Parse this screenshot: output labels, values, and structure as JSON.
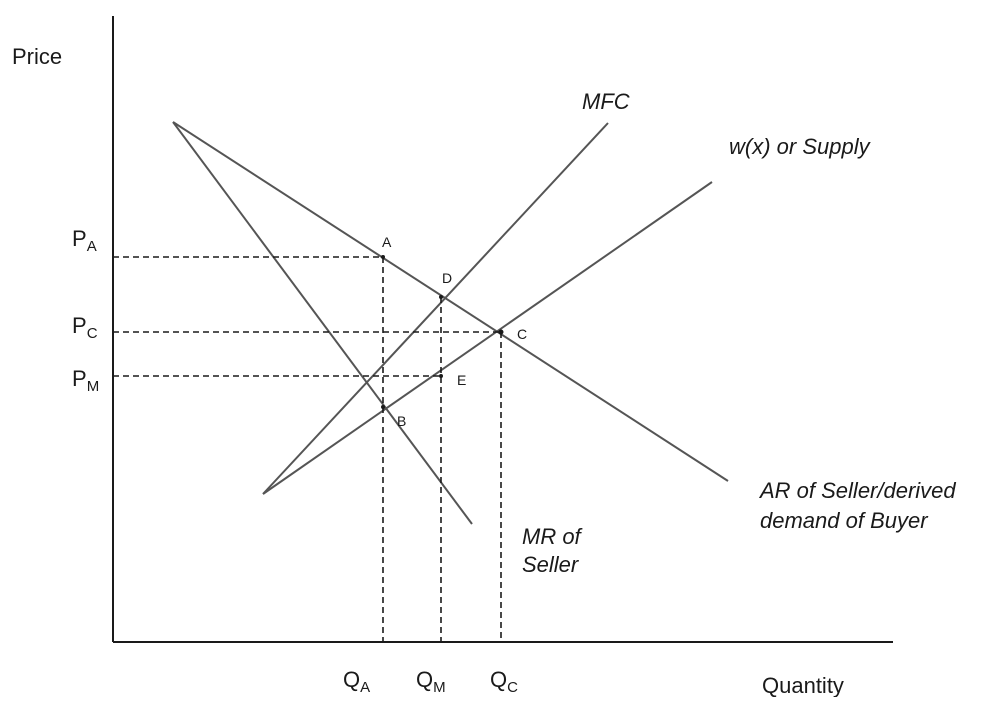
{
  "axes": {
    "y_label": "Price",
    "x_label": "Quantity"
  },
  "price_levels": [
    {
      "id": "pa",
      "main": "P",
      "sub": "A"
    },
    {
      "id": "pc",
      "main": "P",
      "sub": "C"
    },
    {
      "id": "pm",
      "main": "P",
      "sub": "M"
    }
  ],
  "quantity_levels": [
    {
      "id": "qa",
      "main": "Q",
      "sub": "A"
    },
    {
      "id": "qm",
      "main": "Q",
      "sub": "M"
    },
    {
      "id": "qc",
      "main": "Q",
      "sub": "C"
    }
  ],
  "curves": {
    "mfc": "MFC",
    "supply": "w(x) or Supply",
    "ar_line1": "AR of Seller/derived",
    "ar_line2": "demand of Buyer",
    "mr_line1": "MR of",
    "mr_line2": "Seller"
  },
  "points": {
    "a": "A",
    "b": "B",
    "c": "C",
    "d": "D",
    "e": "E"
  }
}
